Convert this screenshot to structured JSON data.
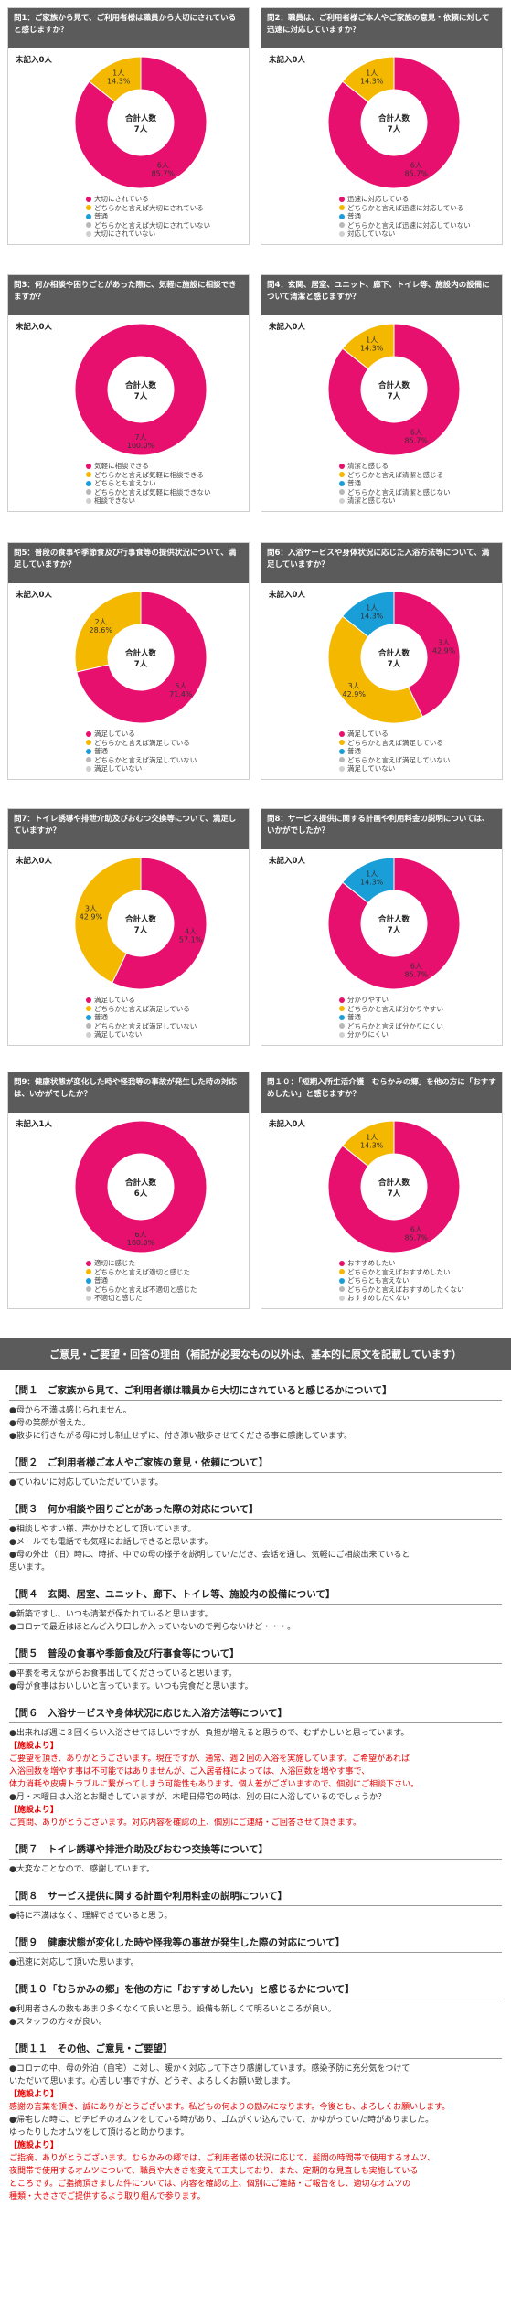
{
  "colors": {
    "very": "#e8106e",
    "somewhat": "#f5b800",
    "normal": "#1a9ed8",
    "somewhat_not": "#b8b8b8",
    "not": "#d0d0d0"
  },
  "total_label": "合計人数",
  "charts": [
    {
      "title": "問1：ご家族から見て、ご利用者様は職員から大切にされていると感じますか？",
      "unfilled": "未記入0人",
      "total": "7人",
      "slices": [
        {
          "label": "大切にされている",
          "count": 6,
          "count_text": "6人",
          "pct_text": "85.7%",
          "color": "#e8106e"
        },
        {
          "label": "どちらかと言えば大切にされている",
          "count": 1,
          "count_text": "1人",
          "pct_text": "14.3%",
          "color": "#f5b800"
        },
        {
          "label": "普通",
          "count": 0,
          "count_text": "",
          "pct_text": "",
          "color": "#1a9ed8"
        },
        {
          "label": "どちらかと言えば大切にされていない",
          "count": 0,
          "count_text": "",
          "pct_text": "",
          "color": "#b8b8b8"
        },
        {
          "label": "大切にされていない",
          "count": 0,
          "count_text": "",
          "pct_text": "",
          "color": "#d0d0d0"
        }
      ]
    },
    {
      "title": "問2：職員は、ご利用者様ご本人やご家族の意見・依頼に対して迅速に対応していますか？",
      "unfilled": "未記入0人",
      "total": "7人",
      "slices": [
        {
          "label": "迅速に対応している",
          "count": 6,
          "count_text": "6人",
          "pct_text": "85.7%",
          "color": "#e8106e"
        },
        {
          "label": "どちらかと言えば迅速に対応している",
          "count": 1,
          "count_text": "1人",
          "pct_text": "14.3%",
          "color": "#f5b800"
        },
        {
          "label": "普通",
          "count": 0,
          "count_text": "",
          "pct_text": "",
          "color": "#1a9ed8"
        },
        {
          "label": "どちらかと言えば迅速に対応していない",
          "count": 0,
          "count_text": "",
          "pct_text": "",
          "color": "#b8b8b8"
        },
        {
          "label": "対応していない",
          "count": 0,
          "count_text": "",
          "pct_text": "",
          "color": "#d0d0d0"
        }
      ]
    },
    {
      "title": "問3：何か相談や困りごとがあった際に、気軽に施設に相談できますか？",
      "unfilled": "未記入0人",
      "total": "7人",
      "slices": [
        {
          "label": "気軽に相談できる",
          "count": 7,
          "count_text": "7人",
          "pct_text": "100.0%",
          "color": "#e8106e"
        },
        {
          "label": "どちらかと言えば気軽に相談できる",
          "count": 0,
          "count_text": "",
          "pct_text": "",
          "color": "#f5b800"
        },
        {
          "label": "どちらとも言えない",
          "count": 0,
          "count_text": "",
          "pct_text": "",
          "color": "#1a9ed8"
        },
        {
          "label": "どちらかと言えば気軽に相談できない",
          "count": 0,
          "count_text": "",
          "pct_text": "",
          "color": "#b8b8b8"
        },
        {
          "label": "相談できない",
          "count": 0,
          "count_text": "",
          "pct_text": "",
          "color": "#d0d0d0"
        }
      ]
    },
    {
      "title": "問4：玄関、居室、ユニット、廊下、トイレ等、施設内の設備について清潔と感じますか？",
      "unfilled": "未記入0人",
      "total": "7人",
      "slices": [
        {
          "label": "清潔と感じる",
          "count": 6,
          "count_text": "6人",
          "pct_text": "85.7%",
          "color": "#e8106e"
        },
        {
          "label": "どちらかと言えば清潔と感じる",
          "count": 1,
          "count_text": "1人",
          "pct_text": "14.3%",
          "color": "#f5b800"
        },
        {
          "label": "普通",
          "count": 0,
          "count_text": "",
          "pct_text": "",
          "color": "#1a9ed8"
        },
        {
          "label": "どちらかと言えば清潔と感じない",
          "count": 0,
          "count_text": "",
          "pct_text": "",
          "color": "#b8b8b8"
        },
        {
          "label": "清潔と感じない",
          "count": 0,
          "count_text": "",
          "pct_text": "",
          "color": "#d0d0d0"
        }
      ]
    },
    {
      "title": "問5：普段の食事や季節食及び行事食等の提供状況について、満足していますか？",
      "unfilled": "未記入0人",
      "total": "7人",
      "slices": [
        {
          "label": "満足している",
          "count": 5,
          "count_text": "5人",
          "pct_text": "71.4%",
          "color": "#e8106e"
        },
        {
          "label": "どちらかと言えば満足している",
          "count": 2,
          "count_text": "2人",
          "pct_text": "28.6%",
          "color": "#f5b800"
        },
        {
          "label": "普通",
          "count": 0,
          "count_text": "",
          "pct_text": "",
          "color": "#1a9ed8"
        },
        {
          "label": "どちらかと言えば満足していない",
          "count": 0,
          "count_text": "",
          "pct_text": "",
          "color": "#b8b8b8"
        },
        {
          "label": "満足していない",
          "count": 0,
          "count_text": "",
          "pct_text": "",
          "color": "#d0d0d0"
        }
      ]
    },
    {
      "title": "問6：入浴サービスや身体状況に応じた入浴方法等について、満足していますか？",
      "unfilled": "未記入0人",
      "total": "7人",
      "slices": [
        {
          "label": "満足している",
          "count": 3,
          "count_text": "3人",
          "pct_text": "42.9%",
          "color": "#e8106e"
        },
        {
          "label": "どちらかと言えば満足している",
          "count": 3,
          "count_text": "3人",
          "pct_text": "42.9%",
          "color": "#f5b800"
        },
        {
          "label": "普通",
          "count": 1,
          "count_text": "1人",
          "pct_text": "14.3%",
          "color": "#1a9ed8"
        },
        {
          "label": "どちらかと言えば満足していない",
          "count": 0,
          "count_text": "",
          "pct_text": "",
          "color": "#b8b8b8"
        },
        {
          "label": "満足していない",
          "count": 0,
          "count_text": "",
          "pct_text": "",
          "color": "#d0d0d0"
        }
      ]
    },
    {
      "title": "問7：トイレ誘導や排泄介助及びおむつ交換等について、満足していますか？",
      "unfilled": "未記入0人",
      "total": "7人",
      "slices": [
        {
          "label": "満足している",
          "count": 4,
          "count_text": "4人",
          "pct_text": "57.1%",
          "color": "#e8106e"
        },
        {
          "label": "どちらかと言えば満足している",
          "count": 3,
          "count_text": "3人",
          "pct_text": "42.9%",
          "color": "#f5b800"
        },
        {
          "label": "普通",
          "count": 0,
          "count_text": "",
          "pct_text": "",
          "color": "#1a9ed8"
        },
        {
          "label": "どちらかと言えば満足していない",
          "count": 0,
          "count_text": "",
          "pct_text": "",
          "color": "#b8b8b8"
        },
        {
          "label": "満足していない",
          "count": 0,
          "count_text": "",
          "pct_text": "",
          "color": "#d0d0d0"
        }
      ]
    },
    {
      "title": "問8：サービス提供に関する計画や利用料金の説明については、いかがでしたか？",
      "unfilled": "未記入0人",
      "total": "7人",
      "slices": [
        {
          "label": "分かりやすい",
          "count": 6,
          "count_text": "6人",
          "pct_text": "85.7%",
          "color": "#e8106e"
        },
        {
          "label": "どちらかと言えば分かりやすい",
          "count": 0,
          "count_text": "",
          "pct_text": "",
          "color": "#f5b800"
        },
        {
          "label": "普通",
          "count": 1,
          "count_text": "1人",
          "pct_text": "14.3%",
          "color": "#1a9ed8"
        },
        {
          "label": "どちらかと言えば分かりにくい",
          "count": 0,
          "count_text": "",
          "pct_text": "",
          "color": "#b8b8b8"
        },
        {
          "label": "分かりにくい",
          "count": 0,
          "count_text": "",
          "pct_text": "",
          "color": "#d0d0d0"
        }
      ]
    },
    {
      "title": "問9：健康状態が変化した時や怪我等の事故が発生した時の対応は、いかがでしたか？",
      "unfilled": "未記入1人",
      "total": "6人",
      "slices": [
        {
          "label": "適切に感じた",
          "count": 6,
          "count_text": "6人",
          "pct_text": "100.0%",
          "color": "#e8106e"
        },
        {
          "label": "どちらかと言えば適切と感じた",
          "count": 0,
          "count_text": "",
          "pct_text": "",
          "color": "#f5b800"
        },
        {
          "label": "普通",
          "count": 0,
          "count_text": "",
          "pct_text": "",
          "color": "#1a9ed8"
        },
        {
          "label": "どちらかと言えば不適切と感じた",
          "count": 0,
          "count_text": "",
          "pct_text": "",
          "color": "#b8b8b8"
        },
        {
          "label": "不適切と感じた",
          "count": 0,
          "count_text": "",
          "pct_text": "",
          "color": "#d0d0d0"
        }
      ]
    },
    {
      "title": "問１０：「短期入所生活介護　むらかみの郷」を他の方に「おすすめしたい」と感じますか？",
      "unfilled": "未記入0人",
      "total": "7人",
      "slices": [
        {
          "label": "おすすめしたい",
          "count": 6,
          "count_text": "6人",
          "pct_text": "85.7%",
          "color": "#e8106e"
        },
        {
          "label": "どちらかと言えばおすすめしたい",
          "count": 1,
          "count_text": "1人",
          "pct_text": "14.3%",
          "color": "#f5b800"
        },
        {
          "label": "どちらとも言えない",
          "count": 0,
          "count_text": "",
          "pct_text": "",
          "color": "#1a9ed8"
        },
        {
          "label": "どちらかと言えばおすすめしたくない",
          "count": 0,
          "count_text": "",
          "pct_text": "",
          "color": "#b8b8b8"
        },
        {
          "label": "おすすめしたくない",
          "count": 0,
          "count_text": "",
          "pct_text": "",
          "color": "#d0d0d0"
        }
      ]
    }
  ],
  "comments_header": "ご意見・ご要望・回答の理由（補記が必要なもの以外は、基本的に原文を記載しています）",
  "comments": [
    {
      "title": "【問１　ご家族から見て、ご利用者様は職員から大切にされていると感じるかについて】",
      "blocks": [
        {
          "type": "text",
          "lines": [
            "●母から不満は感じられません。",
            "●母の笑顔が増えた。",
            "●散歩に行きたがる母に対し制止せずに、付き添い散歩させてくださる事に感謝しています。"
          ]
        }
      ]
    },
    {
      "title": "【問２　ご利用者様ご本人やご家族の意見・依頼について】",
      "blocks": [
        {
          "type": "text",
          "lines": [
            "●ていねいに対応していただいています。"
          ]
        }
      ]
    },
    {
      "title": "【問３　何か相談や困りごとがあった際の対応について】",
      "blocks": [
        {
          "type": "text",
          "lines": [
            "●相談しやすい様、声かけなどして頂いています。",
            "●メールでも電話でも気軽にお話しできると思います。",
            "●母の外出（旧）時に、時折、中での母の様子を説明していただき、会話を通し、気軽にご相談出来ていると",
            "思います。"
          ]
        }
      ]
    },
    {
      "title": "【問４　玄関、居室、ユニット、廊下、トイレ等、施設内の設備について】",
      "blocks": [
        {
          "type": "text",
          "lines": [
            "●新築ですし、いつも清潔が保たれていると思います。",
            "●コロナで最近はほとんど入り口しか入っていないので判らないけど・・・。"
          ]
        }
      ]
    },
    {
      "title": "【問５　普段の食事や季節食及び行事食等について】",
      "blocks": [
        {
          "type": "text",
          "lines": [
            "●平素を考えながらお食事出してくださっていると思います。",
            "●母が食事はおいしいと言っています。いつも完食だと思います。"
          ]
        }
      ]
    },
    {
      "title": "【問６　入浴サービスや身体状況に応じた入浴方法等について】",
      "blocks": [
        {
          "type": "text",
          "lines": [
            "●出来れば週に３回くらい入浴させてほしいですが、負担が増えると思うので、むずかしいと思っています。"
          ]
        },
        {
          "type": "reply_label",
          "text": "【施設より】"
        },
        {
          "type": "reply",
          "lines": [
            "ご要望を頂き、ありがとうございます。現在ですが、通常、週２回の入浴を実施しています。ご希望があれば",
            "入浴回数を増やす事は不可能ではありませんが、ご入居者様によっては、入浴回数を増やす事で、",
            "体力消耗や皮膚トラブルに繋がってしまう可能性もあります。個人差がございますので、個別にご相談下さい。"
          ]
        },
        {
          "type": "text",
          "lines": [
            "●月・木曜日は入浴とお聞きしていますが、木曜日帰宅の時は、別の日に入浴しているのでしょうか？"
          ]
        },
        {
          "type": "reply_label",
          "text": "【施設より】"
        },
        {
          "type": "reply",
          "lines": [
            "ご質問、ありがとうございます。対応内容を確認の上、個別にご連絡・ご回答させて頂きます。"
          ]
        }
      ]
    },
    {
      "title": "【問７　トイレ誘導や排泄介助及びおむつ交換等について】",
      "blocks": [
        {
          "type": "text",
          "lines": [
            "●大変なことなので、感謝しています。"
          ]
        }
      ]
    },
    {
      "title": "【問８　サービス提供に関する計画や利用料金の説明について】",
      "blocks": [
        {
          "type": "text",
          "lines": [
            "●特に不満はなく、理解できていると思う。"
          ]
        }
      ]
    },
    {
      "title": "【問９　健康状態が変化した時や怪我等の事故が発生した際の対応について】",
      "blocks": [
        {
          "type": "text",
          "lines": [
            "●迅速に対応して頂いた思います。"
          ]
        }
      ]
    },
    {
      "title": "【問１０「むらかみの郷」を他の方に「おすすめしたい」と感じるかについて】",
      "blocks": [
        {
          "type": "text",
          "lines": [
            "●利用者さんの数もあまり多くなくて良いと思う。設備も新しくて明るいところが良い。",
            "●スタッフの方々が良い。"
          ]
        }
      ]
    },
    {
      "title": "【問１１　その他、ご意見・ご要望】",
      "blocks": [
        {
          "type": "text",
          "lines": [
            "●コロナの中、母の外泊（自宅）に対し、暖かく対応して下さり感謝しています。感染予防に充分気をつけて",
            "いただいて思います。心苦しい事ですが、どうぞ、よろしくお願い致します。"
          ]
        },
        {
          "type": "reply_label",
          "text": "【施設より】"
        },
        {
          "type": "reply",
          "lines": [
            "感謝の言葉を頂き、誠にありがとうございます。私どもの何よりの励みになります。今後とも、よろしくお願いします。"
          ]
        },
        {
          "type": "text",
          "lines": [
            "●帰宅した時に、ビチビチのオムツをしている時があり、ゴムがくい込んでいて、かゆがっていた時がありました。",
            "ゆったりしたオムツをして頂けると助かります。"
          ]
        },
        {
          "type": "reply_label",
          "text": "【施設より】"
        },
        {
          "type": "reply",
          "lines": [
            "ご指摘、ありがとうございます。むらかみの郷では、ご利用者様の状況に応じて、髪間の時間帯で使用するオムツ、",
            "夜間帯で使用するオムツについて、職員や大きさを変えて工夫しており、また、定期的な見直しも実施している",
            "ところです。ご指摘頂きました件については、内容を確認の上、個別にご連絡・ご報告をし、適切なオムツの",
            "種類・大きさでご提供するよう取り組んで参ります。"
          ]
        }
      ]
    }
  ]
}
